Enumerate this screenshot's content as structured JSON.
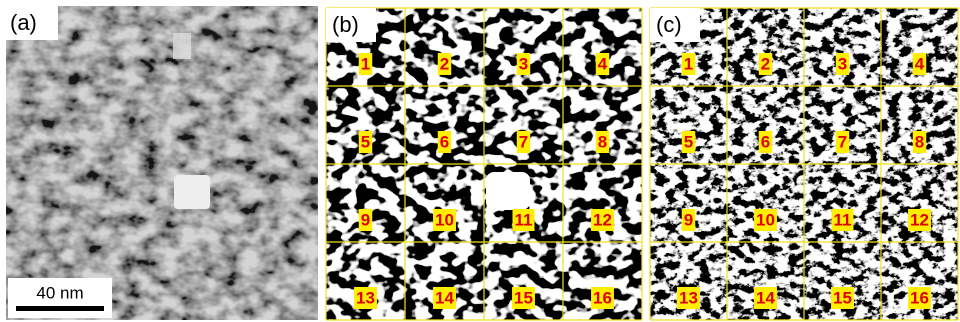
{
  "panels": [
    {
      "label": "(a)",
      "scale_bar": "40 nm"
    },
    {
      "label": "(b)",
      "cells": [
        "1",
        "2",
        "3",
        "4",
        "5",
        "6",
        "7",
        "8",
        "9",
        "10",
        "11",
        "12",
        "13",
        "14",
        "15",
        "16"
      ]
    },
    {
      "label": "(c)",
      "cells": [
        "1",
        "2",
        "3",
        "4",
        "5",
        "6",
        "7",
        "8",
        "9",
        "10",
        "11",
        "12",
        "13",
        "14",
        "15",
        "16"
      ]
    }
  ]
}
